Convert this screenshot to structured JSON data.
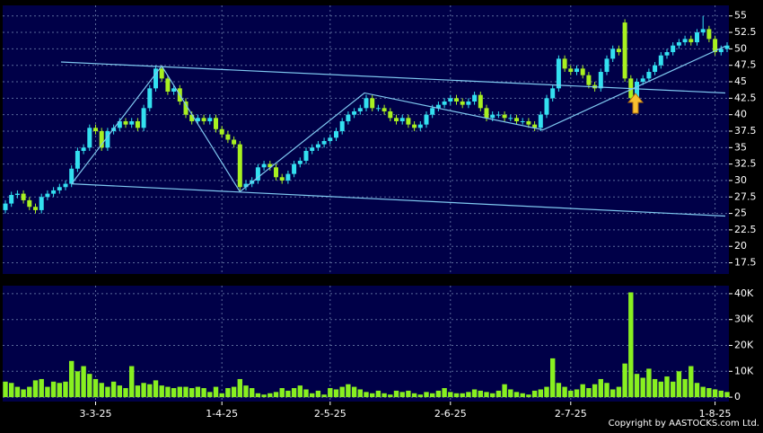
{
  "chart_data": {
    "type": "candlestick",
    "categories": [
      null,
      null,
      null,
      null,
      null,
      null,
      null,
      null,
      null,
      null,
      null,
      null,
      null,
      null,
      null,
      "3-3-25",
      null,
      null,
      null,
      null,
      null,
      null,
      null,
      null,
      null,
      null,
      null,
      null,
      null,
      null,
      null,
      null,
      null,
      null,
      null,
      null,
      "1-4-25",
      null,
      null,
      null,
      null,
      null,
      null,
      null,
      null,
      null,
      null,
      null,
      null,
      null,
      null,
      null,
      null,
      null,
      "2-5-25",
      null,
      null,
      null,
      null,
      null,
      null,
      null,
      null,
      null,
      null,
      null,
      null,
      null,
      null,
      null,
      null,
      null,
      null,
      null,
      "2-6-25",
      null,
      null,
      null,
      null,
      null,
      null,
      null,
      null,
      null,
      null,
      null,
      null,
      null,
      null,
      null,
      null,
      null,
      null,
      null,
      "2-7-25",
      null,
      null,
      null,
      null,
      null,
      null,
      null,
      null,
      null,
      null,
      null,
      null,
      null,
      null,
      null,
      null,
      null,
      null,
      null,
      null,
      null,
      null,
      null,
      "1-8-25",
      null,
      null
    ],
    "open": [
      25.5,
      26.5,
      27.8,
      28,
      27,
      26,
      25.5,
      27.5,
      28,
      28.5,
      29,
      29.5,
      31.8,
      34.5,
      35,
      38,
      37.5,
      35,
      37.5,
      38,
      39,
      38.5,
      39,
      38,
      41,
      44,
      47,
      45.5,
      43.5,
      44,
      42,
      40,
      39,
      39.5,
      39,
      39.5,
      37.8,
      37,
      36.2,
      35.5,
      29,
      29.5,
      30,
      32,
      32.5,
      32,
      30.5,
      30,
      31,
      32.5,
      33,
      34.5,
      35,
      35.5,
      36,
      36.5,
      37.5,
      39,
      40,
      40.5,
      41,
      42.5,
      41,
      41,
      40.5,
      39.5,
      39,
      39.5,
      38.5,
      38,
      38.5,
      40,
      41,
      41.5,
      42,
      42.5,
      42,
      41.5,
      42,
      43,
      41,
      39.5,
      40,
      40,
      39.5,
      39.5,
      39,
      39,
      38.5,
      38,
      40,
      42.5,
      44,
      48.5,
      47,
      46.5,
      47,
      46,
      44.5,
      44,
      46.5,
      48.5,
      50,
      54,
      45.5,
      42.5,
      45,
      45.5,
      46.5,
      47.5,
      49,
      49.5,
      50.5,
      51,
      51.5,
      51,
      52.5,
      53,
      51.5,
      49.5,
      50
    ],
    "high": [
      27,
      28.3,
      28.5,
      28.5,
      27.5,
      26.5,
      28,
      28.5,
      29,
      29.5,
      30,
      32.3,
      35,
      35.5,
      38.5,
      38.5,
      38,
      38,
      38.5,
      39.5,
      39.5,
      39.5,
      39.5,
      41.5,
      44.5,
      47.5,
      47.5,
      46,
      44.5,
      44.5,
      42.5,
      40.5,
      40,
      40,
      40,
      40,
      38.3,
      37.5,
      36.7,
      36,
      30,
      30.5,
      32.5,
      33,
      33,
      32.5,
      31,
      31.5,
      33,
      33.5,
      35,
      35.5,
      36,
      36.5,
      37,
      38,
      39.5,
      40.5,
      41,
      41.5,
      43,
      43,
      41.5,
      41.5,
      41,
      40,
      40,
      40,
      39,
      39,
      40.5,
      41.5,
      42,
      42.5,
      43,
      43,
      42.5,
      42.5,
      43.5,
      43.5,
      41.5,
      40.5,
      40.5,
      40.5,
      40,
      40,
      39.5,
      39.5,
      39,
      40.5,
      43,
      44.5,
      49,
      49,
      47.5,
      47.5,
      47.5,
      46.5,
      45,
      47,
      49,
      50.5,
      50.5,
      54.5,
      46,
      45.5,
      46,
      47,
      48,
      49.5,
      50,
      51,
      51.5,
      52,
      52,
      53,
      55,
      53.5,
      52,
      50.5,
      51
    ],
    "low": [
      25,
      26,
      27.3,
      26.5,
      25.5,
      25,
      25,
      27,
      27.5,
      28,
      28.5,
      29,
      31.3,
      34,
      34.5,
      37,
      34.5,
      34.5,
      37,
      37.5,
      38,
      38,
      37.5,
      37.5,
      40.5,
      43.5,
      45,
      43,
      43,
      41.5,
      39.5,
      38.5,
      38.5,
      38.5,
      38.5,
      37.3,
      36.5,
      35.7,
      35,
      28.5,
      28.5,
      29,
      29.5,
      31.5,
      31.5,
      30,
      29.5,
      29.5,
      30.5,
      32,
      32.5,
      34,
      34.5,
      35,
      35.5,
      36,
      37,
      38.5,
      39.5,
      40,
      40.5,
      40.5,
      40.5,
      40,
      39,
      38.5,
      38.5,
      38,
      37.5,
      37.5,
      38,
      39.5,
      40.5,
      41,
      41.5,
      41.5,
      41,
      41,
      41.5,
      40.5,
      39,
      39,
      39.5,
      39,
      39,
      38.5,
      38.5,
      38,
      37.5,
      37.5,
      39.5,
      42,
      43.5,
      46.5,
      46,
      46,
      45.5,
      44,
      43.5,
      43.5,
      46,
      48,
      49,
      45,
      42,
      42,
      44.5,
      45,
      46,
      47,
      48.5,
      49,
      50,
      50.5,
      50.5,
      50.5,
      52,
      51,
      49,
      49,
      49.5
    ],
    "close": [
      26.5,
      27.8,
      28,
      27,
      26,
      25.5,
      27.5,
      28,
      28.5,
      29,
      29.5,
      31.8,
      34.5,
      35,
      38,
      37.5,
      35,
      37.5,
      38,
      39,
      38.5,
      39,
      38,
      41,
      44,
      47,
      45.5,
      43.5,
      44,
      42,
      40,
      39,
      39.5,
      39,
      39.5,
      37.8,
      37,
      36.2,
      35.5,
      29,
      29.5,
      30,
      32,
      32.5,
      32,
      30.5,
      30,
      31,
      32.5,
      33,
      34.5,
      35,
      35.5,
      36,
      36.5,
      37.5,
      39,
      40,
      40.5,
      41,
      42.5,
      41,
      41,
      40.5,
      39.5,
      39,
      39.5,
      38.5,
      38,
      38.5,
      40,
      41,
      41.5,
      42,
      42.5,
      42,
      41.5,
      42,
      43,
      41,
      39.5,
      40,
      40,
      39.5,
      39.5,
      39,
      39,
      38.5,
      38,
      40,
      42.5,
      44,
      48.5,
      47,
      46.5,
      47,
      46,
      44.5,
      44,
      46.5,
      48.5,
      50,
      49.5,
      45.5,
      42.5,
      45,
      45.5,
      46.5,
      47.5,
      49,
      49.5,
      50.5,
      51,
      51.5,
      51,
      52.5,
      53,
      51.5,
      49.5,
      50,
      50.5
    ],
    "volume": [
      6000,
      5500,
      4000,
      3000,
      4000,
      6500,
      7000,
      4000,
      6000,
      5500,
      6000,
      14000,
      10000,
      12000,
      9000,
      7000,
      5500,
      4000,
      6000,
      4500,
      3500,
      12000,
      4500,
      5500,
      5000,
      6500,
      4500,
      4000,
      3500,
      4000,
      4000,
      3500,
      4000,
      3500,
      2000,
      4000,
      1500,
      3500,
      4000,
      7000,
      4500,
      3500,
      1500,
      1000,
      1500,
      2000,
      3500,
      2500,
      3500,
      4500,
      3000,
      1500,
      2500,
      1000,
      3500,
      3000,
      4000,
      5000,
      4000,
      3000,
      2000,
      1500,
      2500,
      1500,
      1000,
      2500,
      2000,
      2500,
      1500,
      1000,
      2000,
      1500,
      2500,
      3500,
      2000,
      1500,
      1500,
      2000,
      3000,
      2500,
      2000,
      1500,
      2500,
      5000,
      3000,
      2000,
      1500,
      1000,
      2500,
      3000,
      4000,
      15000,
      5500,
      4000,
      2500,
      3000,
      5000,
      3500,
      5000,
      7000,
      5500,
      3000,
      4000,
      13000,
      40500,
      9000,
      7500,
      11000,
      7000,
      6000,
      8000,
      6000,
      10000,
      7000,
      12000,
      5500,
      4000,
      3500,
      3000,
      2500,
      2000
    ],
    "up_color": "#33e0f0",
    "down_color": "#a8f020",
    "volume_color": "#88f020",
    "ylim": [
      15.8,
      56.6
    ],
    "yticks": [
      17.5,
      20,
      22.5,
      25,
      27.5,
      30,
      32.5,
      35,
      37.5,
      40,
      42.5,
      45,
      47.5,
      50,
      52.5,
      55
    ],
    "volume_ylim": [
      -1700,
      43100
    ],
    "volume_yticks": [
      0,
      {
        "value": 10000,
        "label": "10K"
      },
      {
        "value": 20000,
        "label": "20K"
      },
      {
        "value": 30000,
        "label": "30K"
      },
      {
        "value": 40000,
        "label": "40K"
      }
    ],
    "trend_lines": [
      {
        "color": "#7fc8f0",
        "x": [
          9.25,
          119.7
        ],
        "y": [
          48,
          43.3
        ]
      },
      {
        "color": "#7fc8f0",
        "x": [
          11,
          119.7
        ],
        "y": [
          29.5,
          24.6
        ]
      },
      {
        "color": "#7fc8f0",
        "x": [
          11,
          26,
          39,
          59.7,
          89.4,
          119.7
        ],
        "y": [
          29.5,
          47.4,
          28.3,
          43.3,
          37.7,
          50.4
        ]
      }
    ],
    "grid": true,
    "copyright": "Copyright by AASTOCKS.com Ltd."
  }
}
